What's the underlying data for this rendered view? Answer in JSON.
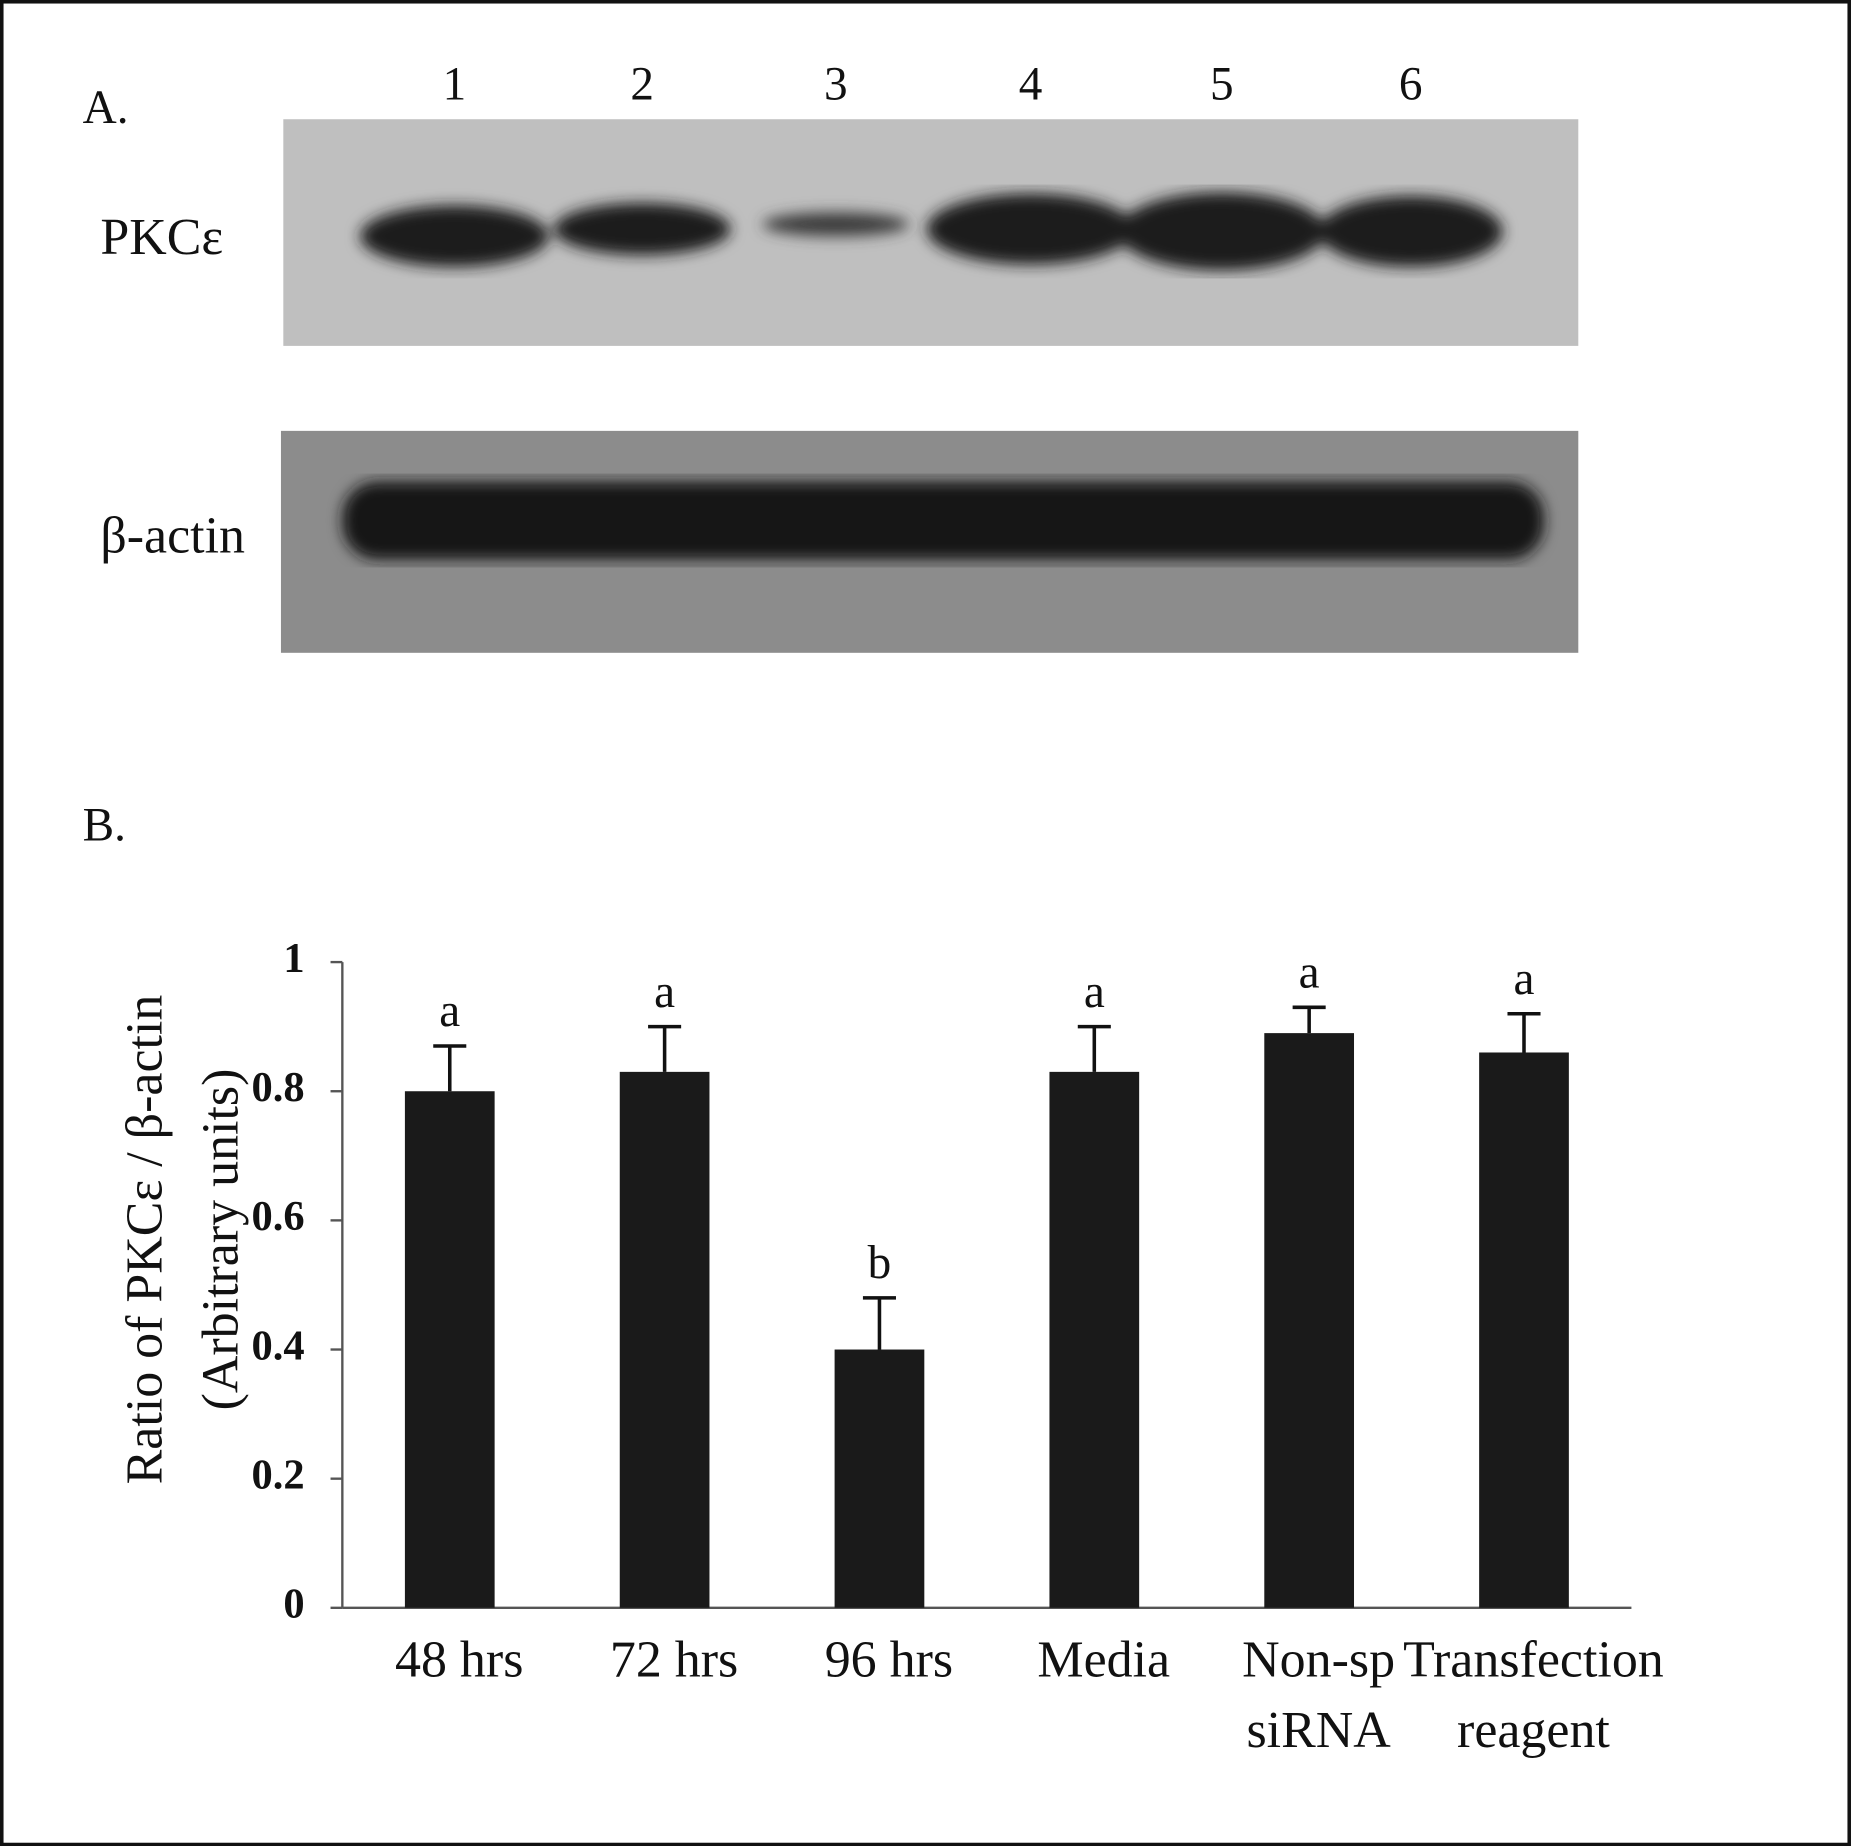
{
  "panel_a": {
    "label": "A.",
    "lanes": [
      "1",
      "2",
      "3",
      "4",
      "5",
      "6"
    ],
    "bands": [
      "PKCε",
      "β-actin"
    ]
  },
  "chart_data": {
    "type": "bar",
    "panel_label": "B.",
    "ylabel": "Ratio of PKCε / β-actin\n(Arbitrary units)",
    "categories": [
      "48 hrs",
      "72 hrs",
      "96 hrs",
      "Media",
      "Non-sp\nsiRNA",
      "Transfection\nreagent"
    ],
    "values": [
      0.8,
      0.83,
      0.4,
      0.83,
      0.89,
      0.86
    ],
    "errors": [
      0.07,
      0.07,
      0.08,
      0.07,
      0.04,
      0.06
    ],
    "annotations": [
      "a",
      "a",
      "b",
      "a",
      "a",
      "a"
    ],
    "color": "#1a1a1a",
    "ylim": [
      0,
      1
    ],
    "yticks": [
      0,
      0.2,
      0.4,
      0.6,
      0.8,
      1
    ]
  }
}
